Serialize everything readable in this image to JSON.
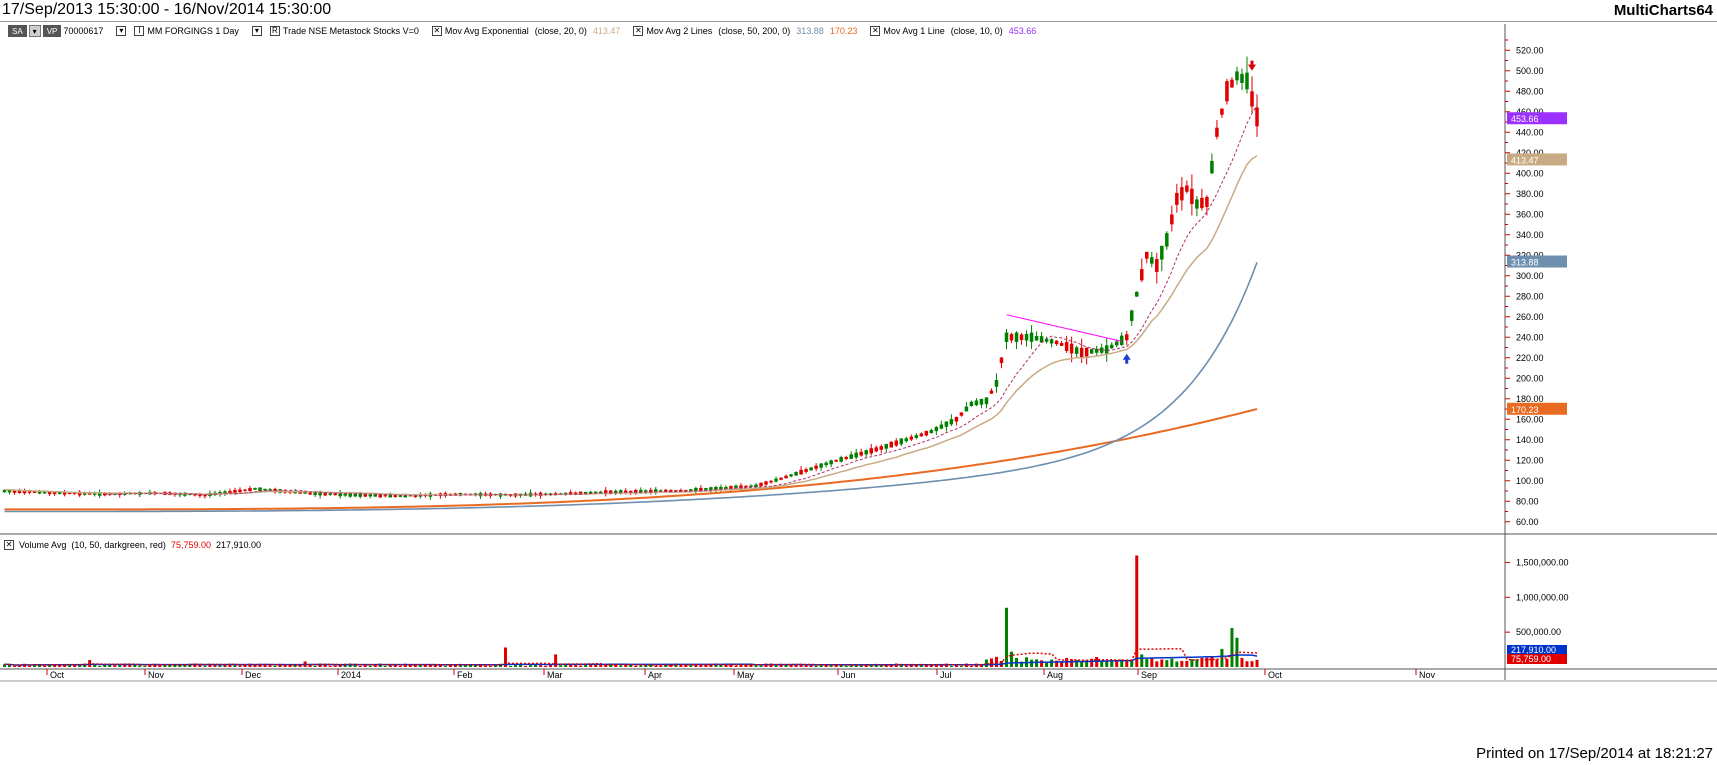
{
  "title_bar": {
    "date_range": "17/Sep/2013 15:30:00 - 16/Nov/2014 15:30:00",
    "app_name": "MultiCharts64"
  },
  "status_line": {
    "tag_sa": "SA",
    "tag_vp": "VP",
    "symbol_code": "70000617",
    "instrument": "MM FORGINGS 1 Day",
    "source": "Trade NSE Metastock Stocks V=0",
    "ema_label": "Mov Avg Exponential",
    "ema_params": "(close, 20, 0)",
    "ema_value": "413.47",
    "ma2_label": "Mov Avg 2 Lines",
    "ma2_params": "(close, 50, 200, 0)",
    "ma2_value1": "313.88",
    "ma2_value2": "170.23",
    "ma1_label": "Mov Avg 1 Line",
    "ma1_params": "(close, 10, 0)",
    "ma1_value": "453.66"
  },
  "volume_line": {
    "label": "Volume Avg",
    "params": "(10, 50, darkgreen, red)",
    "value1": "75,759.00",
    "value2": "217,910.00"
  },
  "footer": {
    "printed": "Printed on 17/Sep/2014 at 18:21:27"
  },
  "colors": {
    "up_candle": "#008000",
    "down_candle": "#e00000",
    "ema20": "#c8ab84",
    "sma50": "#6e8fae",
    "sma200": "#e86b21",
    "ma10": "#b0306a",
    "trendline": "#ff00ff",
    "volume_avg10": "#e00000",
    "volume_avg50": "#0033cc",
    "tag_ma1": "#9b30ff"
  },
  "chart_data": [
    {
      "type": "candlestick",
      "title": "",
      "x_labels": [
        "Oct",
        "Nov",
        "Dec",
        "2014",
        "Feb",
        "Mar",
        "Apr",
        "May",
        "Jun",
        "Jul",
        "Aug",
        "Sep",
        "Oct",
        "Nov"
      ],
      "y_ticks": [
        "60.00",
        "80.00",
        "100.00",
        "120.00",
        "140.00",
        "160.00",
        "180.00",
        "200.00",
        "220.00",
        "240.00",
        "260.00",
        "280.00",
        "300.00",
        "320.00",
        "340.00",
        "360.00",
        "380.00",
        "400.00",
        "420.00",
        "440.00",
        "460.00",
        "480.00",
        "500.00",
        "520.00"
      ],
      "ylim": [
        50,
        530
      ],
      "price_path": [
        [
          0,
          90
        ],
        [
          10,
          88
        ],
        [
          20,
          87
        ],
        [
          30,
          88
        ],
        [
          40,
          86
        ],
        [
          50,
          92
        ],
        [
          60,
          88
        ],
        [
          70,
          86
        ],
        [
          80,
          85
        ],
        [
          90,
          87
        ],
        [
          100,
          86
        ],
        [
          110,
          87
        ],
        [
          115,
          88
        ],
        [
          120,
          89
        ],
        [
          125,
          89
        ],
        [
          130,
          90
        ],
        [
          135,
          90
        ],
        [
          140,
          92
        ],
        [
          145,
          93
        ],
        [
          150,
          95
        ],
        [
          155,
          102
        ],
        [
          160,
          110
        ],
        [
          165,
          118
        ],
        [
          170,
          125
        ],
        [
          175,
          132
        ],
        [
          180,
          140
        ],
        [
          185,
          148
        ],
        [
          190,
          160
        ],
        [
          193,
          175
        ],
        [
          196,
          178
        ],
        [
          198,
          195
        ],
        [
          200,
          240
        ],
        [
          205,
          240
        ],
        [
          210,
          235
        ],
        [
          215,
          225
        ],
        [
          220,
          228
        ],
        [
          224,
          240
        ],
        [
          226,
          282
        ],
        [
          228,
          320
        ],
        [
          230,
          310
        ],
        [
          232,
          335
        ],
        [
          234,
          375
        ],
        [
          236,
          385
        ],
        [
          238,
          370
        ],
        [
          240,
          372
        ],
        [
          242,
          440
        ],
        [
          244,
          480
        ],
        [
          246,
          495
        ],
        [
          248,
          490
        ],
        [
          250,
          455
        ]
      ],
      "series": [
        {
          "name": "Mov Avg Exponential (close, 20, 0)",
          "last": 413.47
        },
        {
          "name": "Mov Avg 2 Lines (close, 50, 200, 0)",
          "last_fast": 313.88,
          "last_slow": 170.23
        },
        {
          "name": "Mov Avg 1 Line (close, 10, 0)",
          "last": 453.66
        }
      ],
      "price_tags": [
        "453.66",
        "413.47",
        "313.88",
        "170.23"
      ],
      "annotations": {
        "buy_arrow": {
          "bar": 224,
          "price": 218
        },
        "sell_arrow": {
          "bar": 249,
          "price": 506
        },
        "trendline": {
          "from": [
            200,
            262
          ],
          "to": [
            223,
            236
          ]
        }
      }
    },
    {
      "type": "bar",
      "title": "",
      "y_ticks": [
        "500,000.00",
        "1,000,000.00",
        "1,500,000.00"
      ],
      "ylim": [
        0,
        1650000
      ],
      "volume_spikes": [
        [
          17,
          100000
        ],
        [
          60,
          80000
        ],
        [
          100,
          280000
        ],
        [
          110,
          180000
        ],
        [
          200,
          850000
        ],
        [
          201,
          220000
        ],
        [
          226,
          1600000
        ],
        [
          227,
          180000
        ],
        [
          245,
          560000
        ],
        [
          246,
          420000
        ],
        [
          243,
          260000
        ]
      ],
      "series": [
        {
          "name": "Volume Avg 10",
          "last": 75759
        },
        {
          "name": "Volume Avg 50",
          "last": 217910
        }
      ],
      "value_tags": [
        "217,910.00",
        "75,759.00"
      ]
    }
  ]
}
